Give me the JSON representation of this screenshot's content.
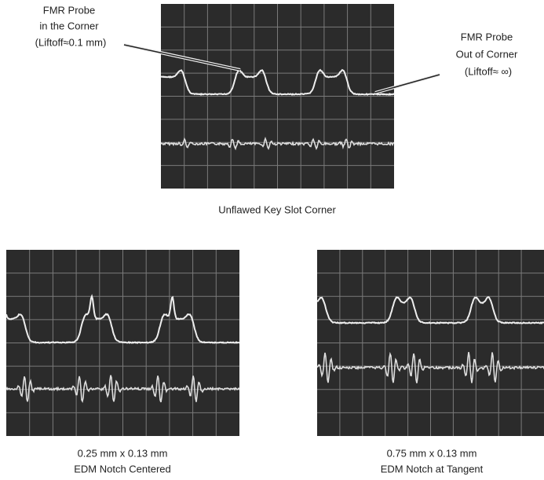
{
  "figure": {
    "top": {
      "caption": "Unflawed Key Slot Corner",
      "left_label": [
        "FMR Probe",
        "in the Corner",
        "(Liftoff≈0.1 mm)"
      ],
      "right_label": [
        "FMR Probe",
        "Out of Corner",
        "(Liftoff≈ ∞)"
      ]
    },
    "bottom_left": {
      "caption": [
        "0.25 mm x 0.13 mm",
        "EDM Notch Centered"
      ]
    },
    "bottom_right": {
      "caption": [
        "0.75 mm x 0.13 mm",
        "EDM Notch at Tangent"
      ]
    }
  }
}
